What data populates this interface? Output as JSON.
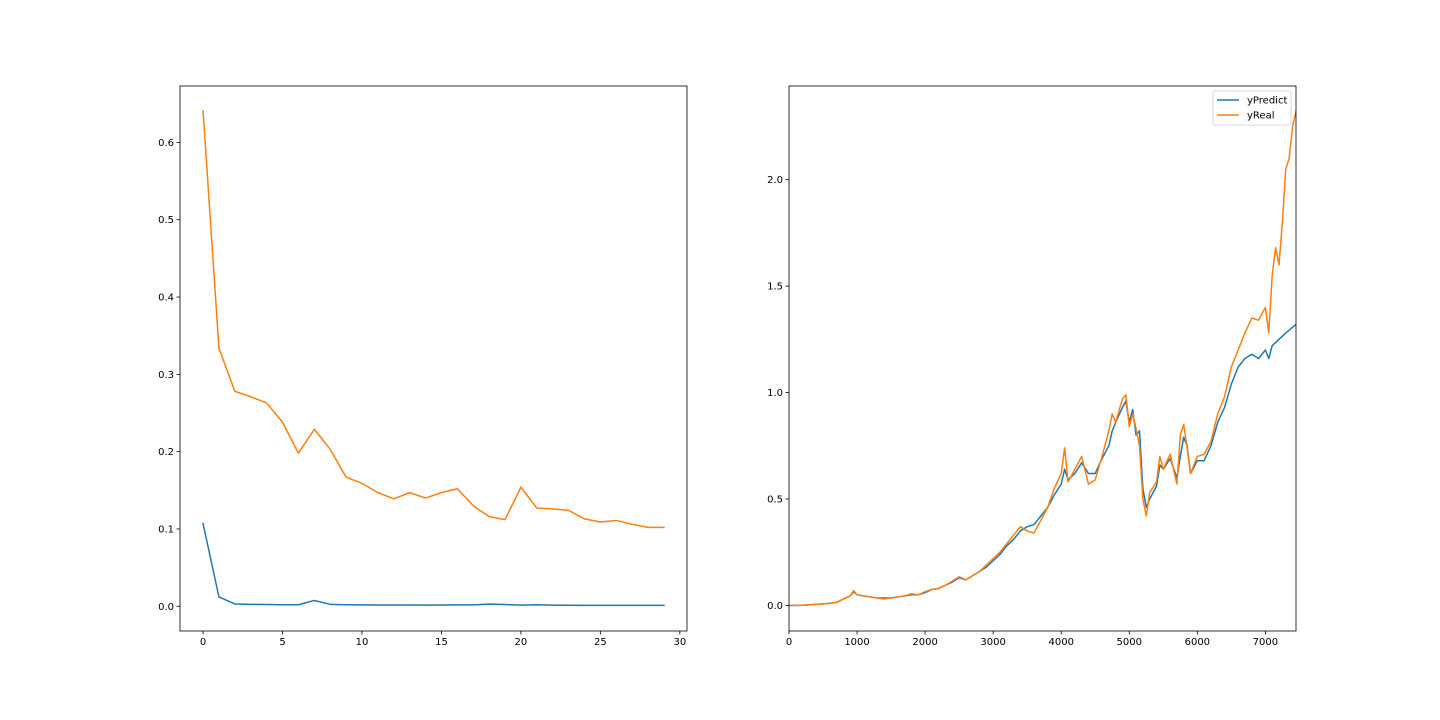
{
  "colors": {
    "series_blue": "#1f77b4",
    "series_orange": "#ff7f0e",
    "axes": "#000000",
    "background": "#ffffff"
  },
  "chart_data": [
    {
      "type": "line",
      "title": "",
      "xlabel": "",
      "ylabel": "",
      "xlim": [
        -1.45,
        30.45
      ],
      "ylim": [
        -0.032,
        0.673
      ],
      "xticks": [
        0,
        5,
        10,
        15,
        20,
        25,
        30
      ],
      "yticks": [
        0.0,
        0.1,
        0.2,
        0.3,
        0.4,
        0.5,
        0.6
      ],
      "xtick_labels": [
        "0",
        "5",
        "10",
        "15",
        "20",
        "25",
        "30"
      ],
      "ytick_labels": [
        "0.0",
        "0.1",
        "0.2",
        "0.3",
        "0.4",
        "0.5",
        "0.6"
      ],
      "grid": false,
      "legend": null,
      "x": [
        0,
        1,
        2,
        3,
        4,
        5,
        6,
        7,
        8,
        9,
        10,
        11,
        12,
        13,
        14,
        15,
        16,
        17,
        18,
        19,
        20,
        21,
        22,
        23,
        24,
        25,
        26,
        27,
        28,
        29
      ],
      "series": [
        {
          "color_key": "series_blue",
          "values": [
            0.107,
            0.012,
            0.003,
            0.0025,
            0.0022,
            0.002,
            0.002,
            0.0075,
            0.0025,
            0.002,
            0.0018,
            0.0017,
            0.0016,
            0.0016,
            0.0015,
            0.0016,
            0.0018,
            0.0018,
            0.0027,
            0.0022,
            0.0015,
            0.002,
            0.0015,
            0.0013,
            0.0012,
            0.0012,
            0.0012,
            0.0011,
            0.0011,
            0.0011
          ]
        },
        {
          "color_key": "series_orange",
          "values": [
            0.641,
            0.334,
            0.278,
            0.271,
            0.263,
            0.238,
            0.198,
            0.229,
            0.203,
            0.167,
            0.159,
            0.147,
            0.139,
            0.147,
            0.14,
            0.147,
            0.152,
            0.13,
            0.116,
            0.112,
            0.154,
            0.127,
            0.126,
            0.124,
            0.113,
            0.109,
            0.111,
            0.106,
            0.102,
            0.102
          ]
        }
      ]
    },
    {
      "type": "line",
      "title": "",
      "xlabel": "",
      "ylabel": "",
      "xlim": [
        0,
        7450
      ],
      "ylim": [
        -0.12,
        2.44
      ],
      "xticks": [
        0,
        1000,
        2000,
        3000,
        4000,
        5000,
        6000,
        7000
      ],
      "yticks": [
        0.0,
        0.5,
        1.0,
        1.5,
        2.0
      ],
      "xtick_labels": [
        "0",
        "1000",
        "2000",
        "3000",
        "4000",
        "5000",
        "6000",
        "7000"
      ],
      "ytick_labels": [
        "0.0",
        "0.5",
        "1.0",
        "1.5",
        "2.0"
      ],
      "grid": false,
      "legend": "upper right",
      "series": [
        {
          "name": "yPredict",
          "color_key": "series_blue",
          "x": [
            0,
            200,
            400,
            600,
            700,
            800,
            900,
            950,
            1000,
            1100,
            1200,
            1300,
            1400,
            1500,
            1600,
            1700,
            1800,
            1900,
            2000,
            2100,
            2200,
            2300,
            2400,
            2500,
            2600,
            2700,
            2800,
            2900,
            3000,
            3100,
            3200,
            3300,
            3400,
            3500,
            3600,
            3700,
            3800,
            3900,
            4000,
            4050,
            4100,
            4200,
            4300,
            4400,
            4500,
            4600,
            4700,
            4750,
            4800,
            4900,
            4950,
            5000,
            5050,
            5100,
            5150,
            5200,
            5250,
            5300,
            5400,
            5450,
            5500,
            5600,
            5700,
            5750,
            5800,
            5850,
            5900,
            6000,
            6100,
            6200,
            6300,
            6400,
            6500,
            6600,
            6700,
            6800,
            6900,
            7000,
            7050,
            7100,
            7200,
            7300,
            7450
          ],
          "values": [
            0,
            0.001,
            0.005,
            0.01,
            0.015,
            0.03,
            0.045,
            0.065,
            0.05,
            0.045,
            0.04,
            0.035,
            0.035,
            0.035,
            0.04,
            0.045,
            0.05,
            0.05,
            0.06,
            0.075,
            0.08,
            0.095,
            0.11,
            0.13,
            0.12,
            0.14,
            0.16,
            0.18,
            0.21,
            0.24,
            0.28,
            0.31,
            0.35,
            0.37,
            0.38,
            0.42,
            0.46,
            0.52,
            0.57,
            0.64,
            0.59,
            0.62,
            0.67,
            0.62,
            0.62,
            0.69,
            0.75,
            0.82,
            0.86,
            0.93,
            0.96,
            0.86,
            0.92,
            0.8,
            0.82,
            0.55,
            0.46,
            0.5,
            0.56,
            0.66,
            0.64,
            0.69,
            0.6,
            0.7,
            0.79,
            0.75,
            0.62,
            0.68,
            0.68,
            0.75,
            0.86,
            0.93,
            1.04,
            1.12,
            1.16,
            1.18,
            1.16,
            1.2,
            1.16,
            1.22,
            1.25,
            1.28,
            1.32
          ]
        },
        {
          "name": "yReal",
          "color_key": "series_orange",
          "x": [
            0,
            200,
            400,
            600,
            700,
            800,
            900,
            950,
            1000,
            1100,
            1200,
            1300,
            1400,
            1500,
            1600,
            1700,
            1800,
            1900,
            2000,
            2100,
            2200,
            2300,
            2400,
            2500,
            2600,
            2700,
            2800,
            2900,
            3000,
            3100,
            3200,
            3300,
            3400,
            3500,
            3600,
            3700,
            3800,
            3900,
            4000,
            4050,
            4100,
            4200,
            4300,
            4400,
            4500,
            4600,
            4700,
            4750,
            4800,
            4900,
            4950,
            5000,
            5050,
            5100,
            5150,
            5200,
            5250,
            5300,
            5400,
            5450,
            5500,
            5600,
            5700,
            5750,
            5800,
            5850,
            5900,
            6000,
            6100,
            6200,
            6300,
            6400,
            6500,
            6600,
            6700,
            6800,
            6900,
            7000,
            7050,
            7100,
            7150,
            7200,
            7250,
            7300,
            7350,
            7400,
            7450
          ],
          "values": [
            0,
            0.001,
            0.005,
            0.01,
            0.015,
            0.03,
            0.045,
            0.07,
            0.05,
            0.045,
            0.04,
            0.035,
            0.03,
            0.035,
            0.04,
            0.045,
            0.055,
            0.05,
            0.065,
            0.075,
            0.08,
            0.095,
            0.115,
            0.135,
            0.12,
            0.14,
            0.16,
            0.19,
            0.22,
            0.25,
            0.29,
            0.33,
            0.37,
            0.35,
            0.34,
            0.4,
            0.46,
            0.55,
            0.62,
            0.74,
            0.58,
            0.64,
            0.7,
            0.57,
            0.59,
            0.7,
            0.82,
            0.9,
            0.86,
            0.97,
            0.99,
            0.84,
            0.9,
            0.83,
            0.75,
            0.5,
            0.42,
            0.53,
            0.58,
            0.7,
            0.64,
            0.71,
            0.57,
            0.8,
            0.85,
            0.74,
            0.62,
            0.7,
            0.71,
            0.77,
            0.9,
            0.98,
            1.12,
            1.2,
            1.28,
            1.35,
            1.34,
            1.4,
            1.28,
            1.55,
            1.68,
            1.6,
            1.8,
            2.05,
            2.1,
            2.25,
            2.32
          ]
        }
      ]
    }
  ]
}
